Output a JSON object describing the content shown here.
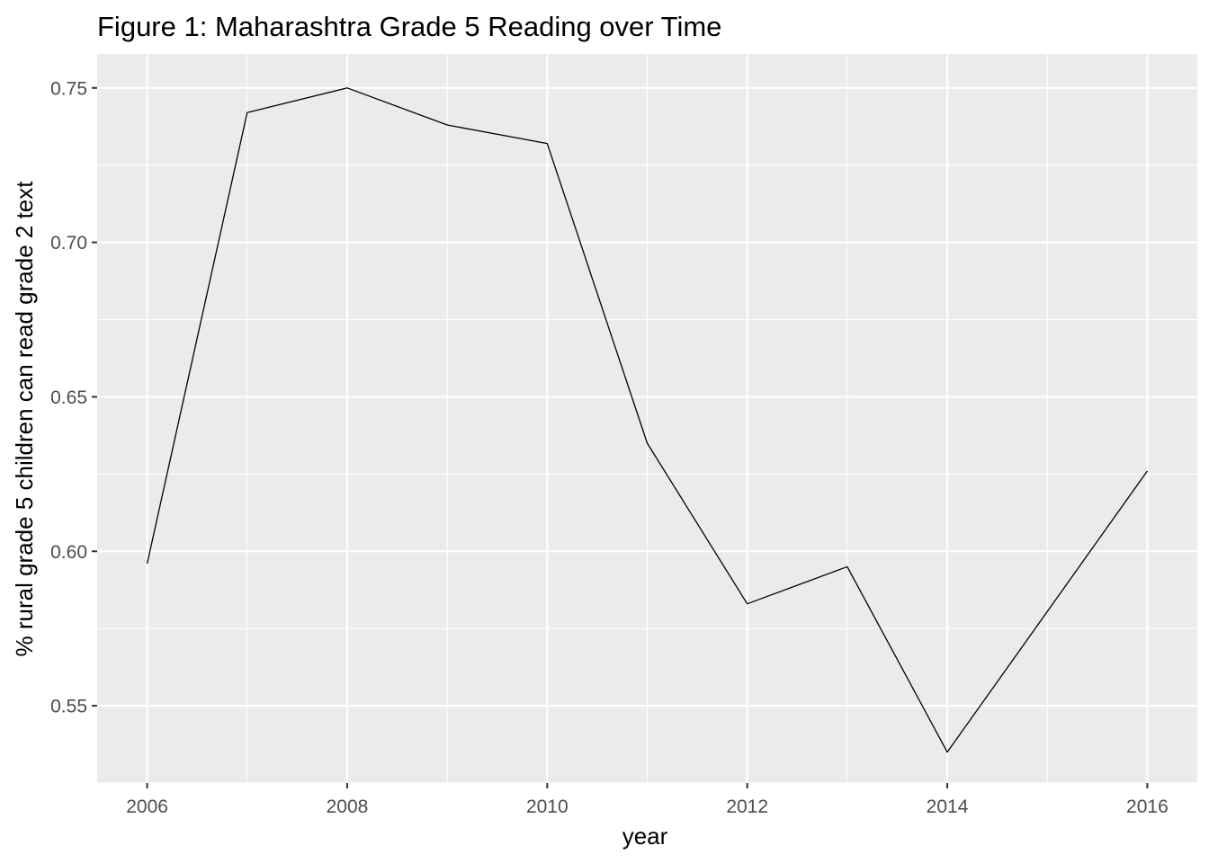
{
  "chart_data": {
    "type": "line",
    "title": "Figure 1: Maharashtra Grade 5 Reading over Time",
    "xlabel": "year",
    "ylabel": "% rural grade 5 children can read grade 2 text",
    "x": [
      2006,
      2007,
      2008,
      2009,
      2010,
      2011,
      2012,
      2013,
      2014,
      2016
    ],
    "series": [
      {
        "values": [
          0.596,
          0.742,
          0.75,
          0.738,
          0.732,
          0.635,
          0.583,
          0.595,
          0.535,
          0.626
        ],
        "color": "#000000"
      }
    ],
    "xlim": [
      2005.5,
      2016.5
    ],
    "ylim": [
      0.525,
      0.761
    ],
    "xticks": [
      2006,
      2008,
      2010,
      2012,
      2014,
      2016
    ],
    "xtick_labels": [
      "2006",
      "2008",
      "2010",
      "2012",
      "2014",
      "2016"
    ],
    "yticks": [
      0.55,
      0.6,
      0.65,
      0.7,
      0.75
    ],
    "ytick_labels": [
      "0.55",
      "0.60",
      "0.65",
      "0.70",
      "0.75"
    ],
    "grid": true,
    "legend": "none",
    "panel_background": "#EBEBEB",
    "grid_color": "#FFFFFF"
  }
}
